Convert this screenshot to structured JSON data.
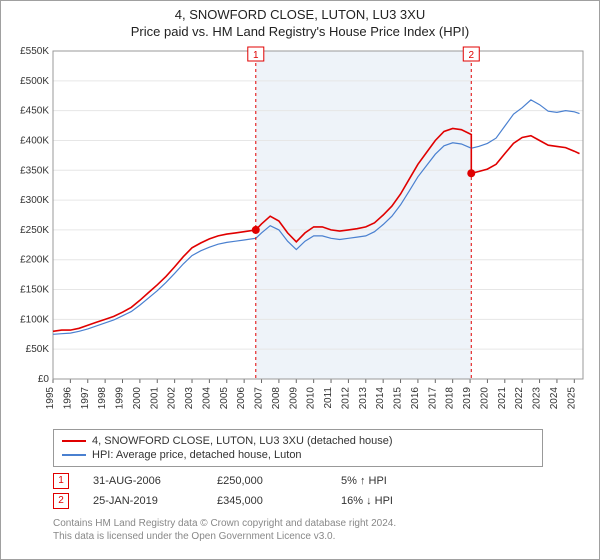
{
  "title_line1": "4, SNOWFORD CLOSE, LUTON, LU3 3XU",
  "title_line2": "Price paid vs. HM Land Registry's House Price Index (HPI)",
  "chart": {
    "type": "line",
    "background_color": "#ffffff",
    "plot_border_color": "#999999",
    "grid_color": "#e6e6e6",
    "band_fill": "#eef3f9",
    "band_start_year": 2006.67,
    "band_end_year": 2019.07,
    "xlim": [
      1995,
      2025.5
    ],
    "ylim": [
      0,
      550000
    ],
    "ytick_step": 50000,
    "ytick_prefix": "£",
    "ytick_suffix": "K",
    "xticks": [
      1995,
      1996,
      1997,
      1998,
      1999,
      2000,
      2001,
      2002,
      2003,
      2004,
      2005,
      2006,
      2007,
      2008,
      2009,
      2010,
      2011,
      2012,
      2013,
      2014,
      2015,
      2016,
      2017,
      2018,
      2019,
      2020,
      2021,
      2022,
      2023,
      2024,
      2025
    ],
    "series": [
      {
        "name": "4, SNOWFORD CLOSE, LUTON, LU3 3XU (detached house)",
        "color": "#e00000",
        "line_width": 1.6,
        "points": [
          [
            1995.0,
            80000
          ],
          [
            1995.5,
            82000
          ],
          [
            1996.0,
            82000
          ],
          [
            1996.5,
            85000
          ],
          [
            1997.0,
            90000
          ],
          [
            1997.5,
            95000
          ],
          [
            1998.0,
            100000
          ],
          [
            1998.5,
            105000
          ],
          [
            1999.0,
            112000
          ],
          [
            1999.5,
            120000
          ],
          [
            2000.0,
            132000
          ],
          [
            2000.5,
            145000
          ],
          [
            2001.0,
            158000
          ],
          [
            2001.5,
            172000
          ],
          [
            2002.0,
            188000
          ],
          [
            2002.5,
            205000
          ],
          [
            2003.0,
            220000
          ],
          [
            2003.5,
            228000
          ],
          [
            2004.0,
            235000
          ],
          [
            2004.5,
            240000
          ],
          [
            2005.0,
            243000
          ],
          [
            2005.5,
            245000
          ],
          [
            2006.0,
            247000
          ],
          [
            2006.67,
            250000
          ],
          [
            2007.0,
            260000
          ],
          [
            2007.5,
            273000
          ],
          [
            2008.0,
            265000
          ],
          [
            2008.5,
            245000
          ],
          [
            2009.0,
            230000
          ],
          [
            2009.5,
            245000
          ],
          [
            2010.0,
            255000
          ],
          [
            2010.5,
            255000
          ],
          [
            2011.0,
            250000
          ],
          [
            2011.5,
            248000
          ],
          [
            2012.0,
            250000
          ],
          [
            2012.5,
            252000
          ],
          [
            2013.0,
            255000
          ],
          [
            2013.5,
            262000
          ],
          [
            2014.0,
            275000
          ],
          [
            2014.5,
            290000
          ],
          [
            2015.0,
            310000
          ],
          [
            2015.5,
            335000
          ],
          [
            2016.0,
            360000
          ],
          [
            2016.5,
            380000
          ],
          [
            2017.0,
            400000
          ],
          [
            2017.5,
            415000
          ],
          [
            2018.0,
            420000
          ],
          [
            2018.5,
            418000
          ],
          [
            2019.07,
            410000
          ],
          [
            2019.07,
            345000
          ],
          [
            2019.5,
            348000
          ],
          [
            2020.0,
            352000
          ],
          [
            2020.5,
            360000
          ],
          [
            2021.0,
            378000
          ],
          [
            2021.5,
            395000
          ],
          [
            2022.0,
            405000
          ],
          [
            2022.5,
            408000
          ],
          [
            2023.0,
            400000
          ],
          [
            2023.5,
            392000
          ],
          [
            2024.0,
            390000
          ],
          [
            2024.5,
            388000
          ],
          [
            2025.0,
            382000
          ],
          [
            2025.3,
            378000
          ]
        ]
      },
      {
        "name": "HPI: Average price, detached house, Luton",
        "color": "#4a80d0",
        "line_width": 1.2,
        "points": [
          [
            1995.0,
            75000
          ],
          [
            1995.5,
            76000
          ],
          [
            1996.0,
            77000
          ],
          [
            1996.5,
            80000
          ],
          [
            1997.0,
            84000
          ],
          [
            1997.5,
            89000
          ],
          [
            1998.0,
            94000
          ],
          [
            1998.5,
            99000
          ],
          [
            1999.0,
            106000
          ],
          [
            1999.5,
            113000
          ],
          [
            2000.0,
            124000
          ],
          [
            2000.5,
            136000
          ],
          [
            2001.0,
            148000
          ],
          [
            2001.5,
            162000
          ],
          [
            2002.0,
            177000
          ],
          [
            2002.5,
            193000
          ],
          [
            2003.0,
            207000
          ],
          [
            2003.5,
            215000
          ],
          [
            2004.0,
            221000
          ],
          [
            2004.5,
            226000
          ],
          [
            2005.0,
            229000
          ],
          [
            2005.5,
            231000
          ],
          [
            2006.0,
            233000
          ],
          [
            2006.67,
            236000
          ],
          [
            2007.0,
            245000
          ],
          [
            2007.5,
            257000
          ],
          [
            2008.0,
            250000
          ],
          [
            2008.5,
            231000
          ],
          [
            2009.0,
            217000
          ],
          [
            2009.5,
            231000
          ],
          [
            2010.0,
            240000
          ],
          [
            2010.5,
            240000
          ],
          [
            2011.0,
            236000
          ],
          [
            2011.5,
            234000
          ],
          [
            2012.0,
            236000
          ],
          [
            2012.5,
            238000
          ],
          [
            2013.0,
            240000
          ],
          [
            2013.5,
            247000
          ],
          [
            2014.0,
            259000
          ],
          [
            2014.5,
            273000
          ],
          [
            2015.0,
            292000
          ],
          [
            2015.5,
            315000
          ],
          [
            2016.0,
            339000
          ],
          [
            2016.5,
            358000
          ],
          [
            2017.0,
            377000
          ],
          [
            2017.5,
            391000
          ],
          [
            2018.0,
            396000
          ],
          [
            2018.5,
            394000
          ],
          [
            2019.07,
            387000
          ],
          [
            2019.5,
            390000
          ],
          [
            2020.0,
            395000
          ],
          [
            2020.5,
            404000
          ],
          [
            2021.0,
            424000
          ],
          [
            2021.5,
            444000
          ],
          [
            2022.0,
            455000
          ],
          [
            2022.5,
            468000
          ],
          [
            2023.0,
            460000
          ],
          [
            2023.5,
            449000
          ],
          [
            2024.0,
            447000
          ],
          [
            2024.5,
            450000
          ],
          [
            2025.0,
            448000
          ],
          [
            2025.3,
            445000
          ]
        ]
      }
    ],
    "sale_markers": [
      {
        "index": 1,
        "year": 2006.67,
        "price": 250000,
        "color": "#e00000"
      },
      {
        "index": 2,
        "year": 2019.07,
        "price": 345000,
        "color": "#e00000"
      }
    ]
  },
  "legend": {
    "items": [
      {
        "color": "#e00000",
        "label": "4, SNOWFORD CLOSE, LUTON, LU3 3XU (detached house)"
      },
      {
        "color": "#4a80d0",
        "label": "HPI: Average price, detached house, Luton"
      }
    ]
  },
  "marker_table": [
    {
      "index": "1",
      "color": "#e00000",
      "date": "31-AUG-2006",
      "price": "£250,000",
      "delta": "5% ↑ HPI"
    },
    {
      "index": "2",
      "color": "#e00000",
      "date": "25-JAN-2019",
      "price": "£345,000",
      "delta": "16% ↓ HPI"
    }
  ],
  "footer_line1": "Contains HM Land Registry data © Crown copyright and database right 2024.",
  "footer_line2": "This data is licensed under the Open Government Licence v3.0."
}
